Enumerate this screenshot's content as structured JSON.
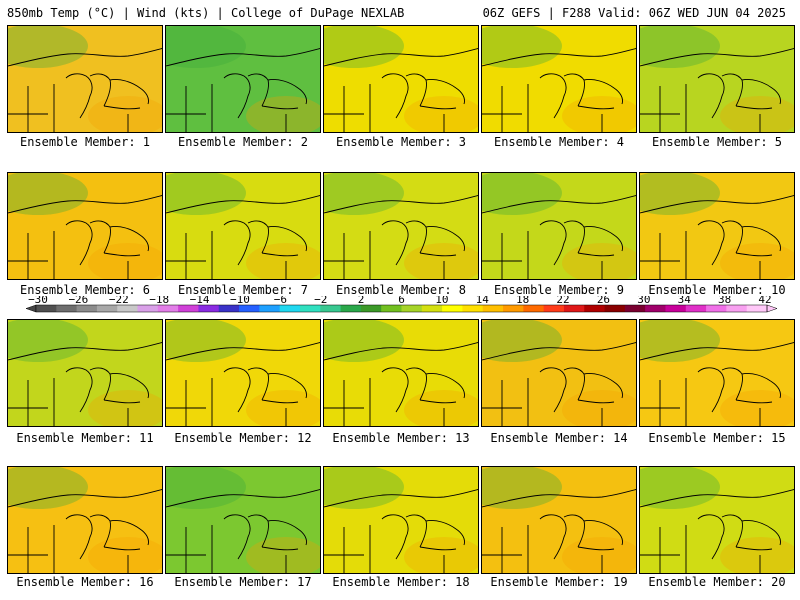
{
  "header": {
    "left": "850mb Temp (°C) | Wind (kts) | College of DuPage NEXLAB",
    "right": "06Z GEFS | F288 Valid: 06Z WED JUN 04 2025"
  },
  "members": [
    {
      "label": "Ensemble Member: 1",
      "dominant_color": "#f0c020"
    },
    {
      "label": "Ensemble Member: 2",
      "dominant_color": "#5fbf40"
    },
    {
      "label": "Ensemble Member: 3",
      "dominant_color": "#eedd00"
    },
    {
      "label": "Ensemble Member: 4",
      "dominant_color": "#f0dc00"
    },
    {
      "label": "Ensemble Member: 5",
      "dominant_color": "#b8d520"
    },
    {
      "label": "Ensemble Member: 6",
      "dominant_color": "#f4c010"
    },
    {
      "label": "Ensemble Member: 7",
      "dominant_color": "#d8dc10"
    },
    {
      "label": "Ensemble Member: 8",
      "dominant_color": "#d4dc14"
    },
    {
      "label": "Ensemble Member: 9",
      "dominant_color": "#c4d81a"
    },
    {
      "label": "Ensemble Member: 10",
      "dominant_color": "#f2c812"
    },
    {
      "label": "Ensemble Member: 11",
      "dominant_color": "#c2d61c"
    },
    {
      "label": "Ensemble Member: 12",
      "dominant_color": "#f0d808"
    },
    {
      "label": "Ensemble Member: 13",
      "dominant_color": "#e8dc06"
    },
    {
      "label": "Ensemble Member: 14",
      "dominant_color": "#f2c012"
    },
    {
      "label": "Ensemble Member: 15",
      "dominant_color": "#f6c812"
    },
    {
      "label": "Ensemble Member: 16",
      "dominant_color": "#f6c012"
    },
    {
      "label": "Ensemble Member: 17",
      "dominant_color": "#7cc830"
    },
    {
      "label": "Ensemble Member: 18",
      "dominant_color": "#e4dc08"
    },
    {
      "label": "Ensemble Member: 19",
      "dominant_color": "#f4c010"
    },
    {
      "label": "Ensemble Member: 20",
      "dominant_color": "#d0dc14"
    }
  ],
  "colorbar": {
    "labels": [
      "-30",
      "-26",
      "-22",
      "-18",
      "-14",
      "-10",
      "-6",
      "-2",
      "2",
      "6",
      "10",
      "14",
      "18",
      "22",
      "26",
      "30",
      "34",
      "38",
      "42"
    ],
    "colors": [
      "#505050",
      "#6e6e6e",
      "#8c8c8c",
      "#a8a8a8",
      "#c8c8c8",
      "#d9a0e8",
      "#e27ee8",
      "#d040d8",
      "#8a2be2",
      "#3a32c8",
      "#2660ff",
      "#1ea0ff",
      "#20d8f0",
      "#30e0c0",
      "#38c890",
      "#2aa84a",
      "#3c9a28",
      "#72c020",
      "#a6d428",
      "#d4e010",
      "#ffff00",
      "#ffe000",
      "#ffbf00",
      "#ff9a00",
      "#ff6a00",
      "#ff3c1a",
      "#e01818",
      "#b00000",
      "#8a0000",
      "#7a0030",
      "#a0006a",
      "#c8009a",
      "#e030c8",
      "#f070e8",
      "#f8a0f0",
      "#ffc8f8"
    ]
  }
}
